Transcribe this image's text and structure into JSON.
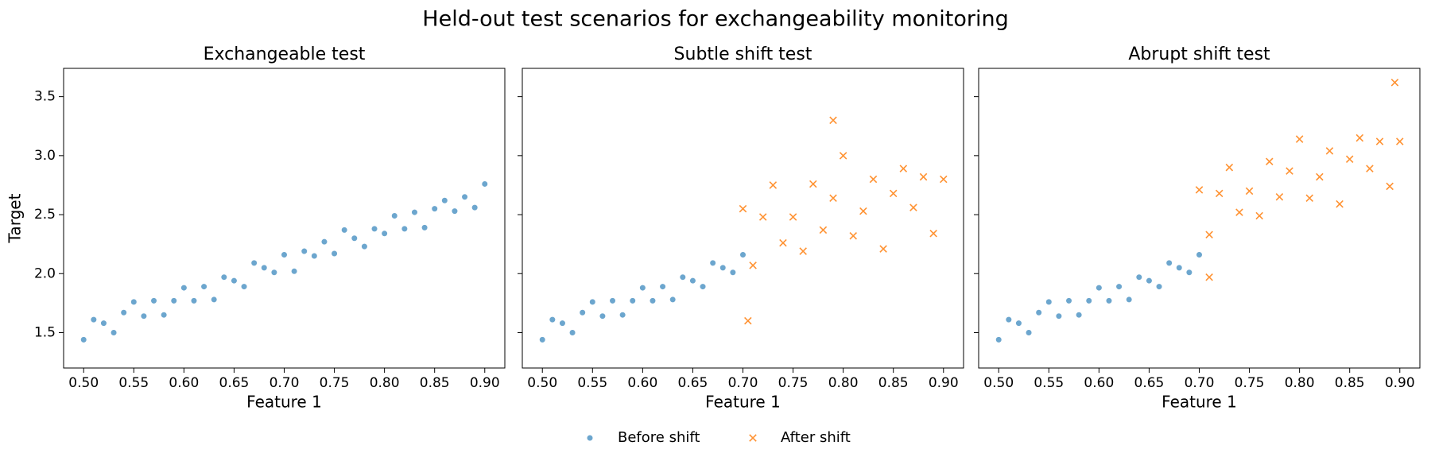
{
  "title": "Held-out test scenarios for exchangeability monitoring",
  "legend": "lower center",
  "chart_data": [
    {
      "type": "scatter",
      "title": "Exchangeable test",
      "x_label": "Feature 1",
      "y_label": "Target",
      "xlim": [
        0.48,
        0.92
      ],
      "ylim": [
        1.2,
        3.74
      ],
      "xticks": [
        {
          "value": 0.5,
          "label": "0.50"
        },
        {
          "value": 0.55,
          "label": "0.55"
        },
        {
          "value": 0.6,
          "label": "0.60"
        },
        {
          "value": 0.65,
          "label": "0.65"
        },
        {
          "value": 0.7,
          "label": "0.70"
        },
        {
          "value": 0.75,
          "label": "0.75"
        },
        {
          "value": 0.8,
          "label": "0.80"
        },
        {
          "value": 0.85,
          "label": "0.85"
        },
        {
          "value": 0.9,
          "label": "0.90"
        }
      ],
      "yticks": [
        1.5,
        {
          "value": 2.0,
          "label": "2.0"
        },
        2.5,
        {
          "value": 3.0,
          "label": "3.0"
        },
        3.5
      ],
      "series": [
        {
          "color": "#1f77b4",
          "marker": "o",
          "x": [
            0.5,
            0.51,
            0.52,
            0.53,
            0.54,
            0.55,
            0.56,
            0.57,
            0.58,
            0.59,
            0.6,
            0.61,
            0.62,
            0.63,
            0.64,
            0.65,
            0.66,
            0.67,
            0.68,
            0.69,
            0.7,
            0.71,
            0.72,
            0.73,
            0.74,
            0.75,
            0.76,
            0.77,
            0.78,
            0.79,
            0.8,
            0.81,
            0.82,
            0.83,
            0.84,
            0.85,
            0.86,
            0.87,
            0.88,
            0.89,
            0.9
          ],
          "values": [
            1.44,
            1.61,
            1.58,
            1.5,
            1.67,
            1.76,
            1.64,
            1.77,
            1.65,
            1.77,
            1.88,
            1.77,
            1.89,
            1.78,
            1.97,
            1.94,
            1.89,
            2.09,
            2.05,
            2.01,
            2.16,
            2.02,
            2.19,
            2.15,
            2.27,
            2.17,
            2.37,
            2.3,
            2.23,
            2.38,
            2.34,
            2.49,
            2.38,
            2.52,
            2.39,
            2.55,
            2.62,
            2.53,
            2.65,
            2.56,
            2.76
          ]
        }
      ]
    },
    {
      "type": "scatter",
      "title": "Subtle shift test",
      "x_label": "Feature 1",
      "sharey": true,
      "xlim": [
        0.48,
        0.92
      ],
      "xticks": [
        {
          "value": 0.5,
          "label": "0.50"
        },
        {
          "value": 0.55,
          "label": "0.55"
        },
        {
          "value": 0.6,
          "label": "0.60"
        },
        {
          "value": 0.65,
          "label": "0.65"
        },
        {
          "value": 0.7,
          "label": "0.70"
        },
        {
          "value": 0.75,
          "label": "0.75"
        },
        {
          "value": 0.8,
          "label": "0.80"
        },
        {
          "value": 0.85,
          "label": "0.85"
        },
        {
          "value": 0.9,
          "label": "0.90"
        }
      ],
      "series": [
        {
          "name": "Before shift",
          "color": "#1f77b4",
          "marker": "o",
          "x": [
            0.5,
            0.51,
            0.52,
            0.53,
            0.54,
            0.55,
            0.56,
            0.57,
            0.58,
            0.59,
            0.6,
            0.61,
            0.62,
            0.63,
            0.64,
            0.65,
            0.66,
            0.67,
            0.68,
            0.69,
            0.7
          ],
          "values": [
            1.44,
            1.61,
            1.58,
            1.5,
            1.67,
            1.76,
            1.64,
            1.77,
            1.65,
            1.77,
            1.88,
            1.77,
            1.89,
            1.78,
            1.97,
            1.94,
            1.89,
            2.09,
            2.05,
            2.01,
            2.16
          ]
        },
        {
          "name": "After shift",
          "color": "#ff7f0e",
          "marker": "x",
          "x": [
            0.7,
            0.71,
            0.72,
            0.73,
            0.74,
            0.75,
            0.76,
            0.77,
            0.78,
            0.79,
            0.8,
            0.81,
            0.82,
            0.83,
            0.84,
            0.85,
            0.86,
            0.87,
            0.88,
            0.89,
            0.9,
            0.705,
            0.79
          ],
          "values": [
            2.55,
            2.07,
            2.48,
            2.75,
            2.26,
            2.48,
            2.19,
            2.76,
            2.37,
            2.64,
            3.0,
            2.32,
            2.53,
            2.8,
            2.21,
            2.68,
            2.89,
            2.56,
            2.82,
            2.34,
            2.8,
            1.6,
            3.3
          ]
        }
      ]
    },
    {
      "type": "scatter",
      "title": "Abrupt shift test",
      "x_label": "Feature 1",
      "sharey": true,
      "xlim": [
        0.48,
        0.92
      ],
      "xticks": [
        {
          "value": 0.5,
          "label": "0.50"
        },
        {
          "value": 0.55,
          "label": "0.55"
        },
        {
          "value": 0.6,
          "label": "0.60"
        },
        {
          "value": 0.65,
          "label": "0.65"
        },
        {
          "value": 0.7,
          "label": "0.70"
        },
        {
          "value": 0.75,
          "label": "0.75"
        },
        {
          "value": 0.8,
          "label": "0.80"
        },
        {
          "value": 0.85,
          "label": "0.85"
        },
        {
          "value": 0.9,
          "label": "0.90"
        }
      ],
      "series": [
        {
          "color": "#1f77b4",
          "marker": "o",
          "x": [
            0.5,
            0.51,
            0.52,
            0.53,
            0.54,
            0.55,
            0.56,
            0.57,
            0.58,
            0.59,
            0.6,
            0.61,
            0.62,
            0.63,
            0.64,
            0.65,
            0.66,
            0.67,
            0.68,
            0.69,
            0.7
          ],
          "values": [
            1.44,
            1.61,
            1.58,
            1.5,
            1.67,
            1.76,
            1.64,
            1.77,
            1.65,
            1.77,
            1.88,
            1.77,
            1.89,
            1.78,
            1.97,
            1.94,
            1.89,
            2.09,
            2.05,
            2.01,
            2.16
          ]
        },
        {
          "color": "#ff7f0e",
          "marker": "x",
          "x": [
            0.7,
            0.71,
            0.72,
            0.73,
            0.74,
            0.75,
            0.76,
            0.77,
            0.78,
            0.79,
            0.8,
            0.81,
            0.82,
            0.83,
            0.84,
            0.85,
            0.86,
            0.87,
            0.88,
            0.89,
            0.9,
            0.71,
            0.895
          ],
          "values": [
            2.71,
            2.33,
            2.68,
            2.9,
            2.52,
            2.7,
            2.49,
            2.95,
            2.65,
            2.87,
            3.14,
            2.64,
            2.82,
            3.04,
            2.59,
            2.97,
            3.15,
            2.89,
            3.12,
            2.74,
            3.12,
            1.97,
            3.62
          ]
        }
      ]
    }
  ]
}
